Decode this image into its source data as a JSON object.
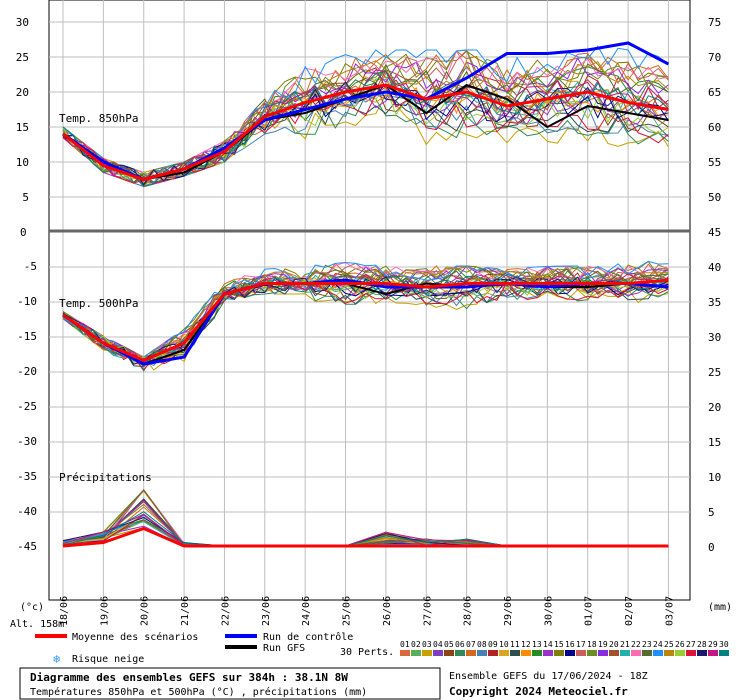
{
  "colors": {
    "mean": "#ff0000",
    "control": "#0000ff",
    "gfs": "#000000",
    "grid": "#bfbfbf",
    "members": [
      "#d9693a",
      "#5ab05a",
      "#c8a000",
      "#7f3fbf",
      "#8b4513",
      "#2e8b57",
      "#d2691e",
      "#4682b4",
      "#b22222",
      "#daa520",
      "#2f4f4f",
      "#ff8c00",
      "#228b22",
      "#9932cc",
      "#808000",
      "#00008b",
      "#cd5c5c",
      "#6b8e23",
      "#8a2be2",
      "#a0522d",
      "#20b2aa",
      "#ff69b4",
      "#556b2f",
      "#1e90ff",
      "#b8860b",
      "#9acd32",
      "#dc143c",
      "#191970",
      "#c71585",
      "#008080"
    ]
  },
  "labels": {
    "unit_left": "(°c)",
    "unit_right": "(mm)",
    "alt": "Alt. 158m",
    "mean": "Moyenne des scénarios",
    "control": "Run de contrôle",
    "gfs": "Run GFS",
    "snow": "Risque neige",
    "perts": "30 Perts.",
    "perts_numbers": [
      "01",
      "02",
      "03",
      "04",
      "05",
      "06",
      "07",
      "08",
      "09",
      "10",
      "11",
      "12",
      "13",
      "14",
      "15",
      "16",
      "17",
      "18",
      "19",
      "20",
      "21",
      "22",
      "23",
      "24",
      "25",
      "26",
      "27",
      "28",
      "29",
      "30"
    ],
    "title": "Diagramme des ensembles GEFS sur 384h : 38.1N 8W",
    "subtitle": "Températures 850hPa et 500hPa (°C) , précipitations (mm)",
    "ensemble": "Ensemble GEFS du 17/06/2024 - 18Z",
    "copyright": "Copyright 2024 Meteociel.fr"
  },
  "chart_data": {
    "type": "line",
    "x_dates": [
      "18/06",
      "19/06",
      "20/06",
      "21/06",
      "22/06",
      "23/06",
      "24/06",
      "25/06",
      "26/06",
      "27/06",
      "28/06",
      "29/06",
      "30/06",
      "01/07",
      "02/07",
      "03/07"
    ],
    "panels": [
      {
        "name": "Temp. 850hPa",
        "y_left_ticks": [
          5,
          10,
          15,
          20,
          25,
          30
        ],
        "y_right_ticks": [
          50,
          55,
          60,
          65,
          70,
          75
        ],
        "axis_zero_label": "0",
        "mean": [
          14,
          9.5,
          7.5,
          9,
          11.5,
          16.5,
          18.5,
          20,
          21,
          19,
          20,
          18,
          19,
          20,
          18.5,
          17.5
        ],
        "control": [
          14,
          10,
          7.5,
          9,
          12,
          16,
          17.5,
          19,
          20,
          19,
          22,
          25.5,
          25.5,
          26,
          27,
          24
        ],
        "gfs": [
          14,
          10,
          7.5,
          8.5,
          11.5,
          16,
          17,
          19,
          21,
          17,
          21,
          19,
          15,
          18,
          17,
          16
        ],
        "member_min": [
          13.5,
          8.5,
          6.5,
          8,
          10,
          14,
          12,
          15,
          15,
          10,
          8,
          12,
          11,
          10,
          9,
          8
        ],
        "member_max": [
          15,
          10.5,
          8.5,
          10,
          13,
          19,
          24,
          26,
          26,
          26,
          26,
          26,
          26,
          27,
          26,
          26
        ]
      },
      {
        "name": "Temp. 500hPa",
        "y_left_ticks": [
          -5,
          -10,
          -15,
          -20,
          -25,
          -30,
          -35,
          -40,
          -45
        ],
        "y_right_ticks": [
          45,
          40,
          35,
          30,
          25,
          20,
          15,
          10,
          5,
          0
        ],
        "mean": [
          -12,
          -16,
          -18.5,
          -16,
          -9,
          -7.5,
          -7.5,
          -7.5,
          -7.5,
          -8,
          -7.5,
          -7.5,
          -7.5,
          -7.5,
          -7.5,
          -7
        ],
        "control": [
          -12,
          -16,
          -19,
          -18,
          -9,
          -7.5,
          -7.5,
          -7,
          -8,
          -8,
          -8,
          -7.5,
          -8,
          -7.5,
          -7.5,
          -8
        ],
        "gfs": [
          -12,
          -16,
          -19,
          -17,
          -9,
          -7.5,
          -7.5,
          -7.5,
          -9,
          -7.5,
          -8,
          -7.5,
          -8,
          -8,
          -7.5,
          -8
        ],
        "member_min": [
          -12.5,
          -17,
          -20,
          -20,
          -10,
          -9,
          -9,
          -15,
          -11,
          -12,
          -16,
          -11,
          -12,
          -11,
          -11,
          -10
        ],
        "member_max": [
          -11.5,
          -15,
          -18,
          -14,
          -7,
          -5,
          -5,
          -4.5,
          -5,
          -5,
          -5,
          -5.5,
          -5,
          -5,
          -4,
          -2.5
        ]
      },
      {
        "name": "Précipitations",
        "unit": "mm",
        "mean": [
          0,
          0.5,
          2.5,
          0,
          0,
          0,
          0,
          0,
          0,
          0,
          0,
          0,
          0,
          0,
          0,
          0
        ],
        "member_max": [
          1,
          2,
          8,
          0.5,
          0,
          0,
          0,
          0,
          2,
          1,
          1,
          0,
          0,
          0,
          0,
          0
        ]
      }
    ]
  }
}
